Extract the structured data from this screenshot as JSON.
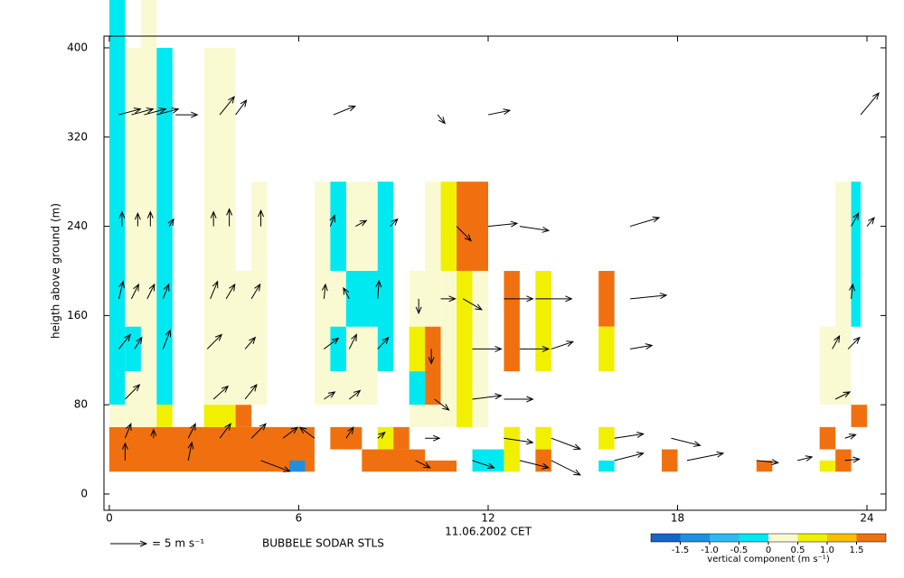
{
  "chart_data": {
    "type": "sodar",
    "ylabel": "heigth above ground (m)",
    "xlabel": "11.06.2002 CET",
    "caption": "BUBBELE SODAR STLS",
    "arrow_legend": "= 5 m s⁻¹",
    "arrow_legend_speed": 5,
    "colorbar_label": "vertical component (m s⁻¹)",
    "xlim": [
      -0.17,
      24.6
    ],
    "ylim": [
      -14.6,
      410.5
    ],
    "xticks": [
      0,
      6,
      12,
      18,
      24
    ],
    "yticks": [
      0,
      80,
      160,
      240,
      320,
      400
    ],
    "levels": [
      -2,
      -1.5,
      -1,
      -0.5,
      0,
      0.5,
      1,
      1.5,
      2
    ],
    "level_colors": [
      "#1565c8",
      "#1e90e0",
      "#30b8f0",
      "#00e8f0",
      "#fafad2",
      "#f0f000",
      "#f5c000",
      "#f07010"
    ],
    "colorbar_ticks": [
      -1.5,
      {
        "value": -1,
        "label": "-1.0"
      },
      -0.5,
      0,
      0.5,
      {
        "value": 1,
        "label": "1.0"
      },
      1.5
    ],
    "cells": [
      {
        "t0": 0,
        "t1": 6.5,
        "h0": 20,
        "h1": 60,
        "v": 1.8
      },
      {
        "t0": 5.7,
        "t1": 6.2,
        "h0": 20,
        "h1": 30,
        "v": -1.2
      },
      {
        "t0": 0,
        "t1": 0.5,
        "h0": 80,
        "h1": 443,
        "v": -0.3
      },
      {
        "t0": 0,
        "t1": 0.5,
        "h0": 60,
        "h1": 80,
        "v": 0.2
      },
      {
        "t0": 0.5,
        "t1": 1.5,
        "h0": 60,
        "h1": 400,
        "v": 0.2
      },
      {
        "t0": 1.0,
        "t1": 1.5,
        "h0": 400,
        "h1": 443,
        "v": 0.2
      },
      {
        "t0": 0.5,
        "t1": 1.0,
        "h0": 110,
        "h1": 150,
        "v": -0.3
      },
      {
        "t0": 1.5,
        "t1": 2.0,
        "h0": 80,
        "h1": 400,
        "v": -0.3
      },
      {
        "t0": 1.5,
        "t1": 2.0,
        "h0": 60,
        "h1": 80,
        "v": 0.8
      },
      {
        "t0": 3.0,
        "t1": 4.0,
        "h0": 80,
        "h1": 400,
        "v": 0.2
      },
      {
        "t0": 3.0,
        "t1": 4.0,
        "h0": 60,
        "h1": 80,
        "v": 0.8
      },
      {
        "t0": 4.0,
        "t1": 4.5,
        "h0": 60,
        "h1": 80,
        "v": 1.8
      },
      {
        "t0": 4.0,
        "t1": 5.0,
        "h0": 80,
        "h1": 200,
        "v": 0.2
      },
      {
        "t0": 4.5,
        "t1": 5.0,
        "h0": 200,
        "h1": 280,
        "v": 0.2
      },
      {
        "t0": 6.5,
        "t1": 8.5,
        "h0": 80,
        "h1": 280,
        "v": 0.2
      },
      {
        "t0": 7.0,
        "t1": 7.5,
        "h0": 200,
        "h1": 280,
        "v": -0.3
      },
      {
        "t0": 7.0,
        "t1": 7.5,
        "h0": 110,
        "h1": 150,
        "v": -0.3
      },
      {
        "t0": 7.5,
        "t1": 9.0,
        "h0": 150,
        "h1": 200,
        "v": -0.3
      },
      {
        "t0": 8.5,
        "t1": 9.0,
        "h0": 110,
        "h1": 280,
        "v": -0.3
      },
      {
        "t0": 9.5,
        "t1": 10.5,
        "h0": 60,
        "h1": 200,
        "v": 0.2
      },
      {
        "t0": 9.5,
        "t1": 10.0,
        "h0": 80,
        "h1": 110,
        "v": -0.3
      },
      {
        "t0": 9.5,
        "t1": 10.0,
        "h0": 110,
        "h1": 150,
        "v": 0.8
      },
      {
        "t0": 10.0,
        "t1": 10.5,
        "h0": 80,
        "h1": 150,
        "v": 1.8
      },
      {
        "t0": 10.0,
        "t1": 10.5,
        "h0": 200,
        "h1": 280,
        "v": 0.2
      },
      {
        "t0": 10.5,
        "t1": 11.0,
        "h0": 200,
        "h1": 280,
        "v": 0.8
      },
      {
        "t0": 11.0,
        "t1": 12.0,
        "h0": 200,
        "h1": 280,
        "v": 1.8
      },
      {
        "t0": 10.5,
        "t1": 12.0,
        "h0": 60,
        "h1": 200,
        "v": 0.2
      },
      {
        "t0": 11.0,
        "t1": 11.5,
        "h0": 60,
        "h1": 200,
        "v": 0.8
      },
      {
        "t0": 12.5,
        "t1": 13.0,
        "h0": 110,
        "h1": 200,
        "v": 1.8
      },
      {
        "t0": 13.5,
        "t1": 14.0,
        "h0": 110,
        "h1": 200,
        "v": 0.8
      },
      {
        "t0": 15.5,
        "t1": 16.0,
        "h0": 150,
        "h1": 200,
        "v": 1.8
      },
      {
        "t0": 15.5,
        "t1": 16.0,
        "h0": 110,
        "h1": 150,
        "v": 0.8
      },
      {
        "t0": 7.0,
        "t1": 8.0,
        "h0": 40,
        "h1": 60,
        "v": 1.8
      },
      {
        "t0": 8.5,
        "t1": 9.0,
        "h0": 40,
        "h1": 60,
        "v": 0.8
      },
      {
        "t0": 9.0,
        "t1": 9.5,
        "h0": 40,
        "h1": 60,
        "v": 1.8
      },
      {
        "t0": 8.0,
        "t1": 10.0,
        "h0": 20,
        "h1": 40,
        "v": 1.8
      },
      {
        "t0": 10.0,
        "t1": 11.0,
        "h0": 20,
        "h1": 30,
        "v": 1.8
      },
      {
        "t0": 11.5,
        "t1": 12.5,
        "h0": 20,
        "h1": 40,
        "v": -0.3
      },
      {
        "t0": 12.5,
        "t1": 13.0,
        "h0": 20,
        "h1": 60,
        "v": 0.8
      },
      {
        "t0": 13.5,
        "t1": 14.0,
        "h0": 20,
        "h1": 40,
        "v": 1.8
      },
      {
        "t0": 13.5,
        "t1": 14.0,
        "h0": 40,
        "h1": 60,
        "v": 0.8
      },
      {
        "t0": 15.5,
        "t1": 16.0,
        "h0": 40,
        "h1": 60,
        "v": 0.8
      },
      {
        "t0": 15.5,
        "t1": 16.0,
        "h0": 20,
        "h1": 30,
        "v": -0.3
      },
      {
        "t0": 17.5,
        "t1": 18.0,
        "h0": 20,
        "h1": 40,
        "v": 1.8
      },
      {
        "t0": 20.5,
        "t1": 21.0,
        "h0": 20,
        "h1": 30,
        "v": 1.8
      },
      {
        "t0": 22.5,
        "t1": 23.0,
        "h0": 40,
        "h1": 60,
        "v": 1.8
      },
      {
        "t0": 22.5,
        "t1": 23.0,
        "h0": 20,
        "h1": 30,
        "v": 0.8
      },
      {
        "t0": 23.0,
        "t1": 23.5,
        "h0": 20,
        "h1": 40,
        "v": 1.8
      },
      {
        "t0": 23.5,
        "t1": 24.0,
        "h0": 60,
        "h1": 80,
        "v": 1.8
      },
      {
        "t0": 22.5,
        "t1": 23.5,
        "h0": 80,
        "h1": 150,
        "v": 0.2
      },
      {
        "t0": 23.0,
        "t1": 23.5,
        "h0": 150,
        "h1": 280,
        "v": 0.2
      },
      {
        "t0": 23.5,
        "t1": 23.8,
        "h0": 150,
        "h1": 280,
        "v": -0.3
      }
    ],
    "arrows": [
      {
        "t": 0.3,
        "h": 340,
        "u": 3,
        "v": 0.8
      },
      {
        "t": 0.7,
        "h": 340,
        "u": 3,
        "v": 0.8
      },
      {
        "t": 1.1,
        "h": 340,
        "u": 3,
        "v": 0.8
      },
      {
        "t": 1.5,
        "h": 340,
        "u": 3,
        "v": 0.8
      },
      {
        "t": 2.1,
        "h": 340,
        "u": 3,
        "v": 0
      },
      {
        "t": 3.5,
        "h": 340,
        "u": 2,
        "v": 2.5
      },
      {
        "t": 4.0,
        "h": 340,
        "u": 1.5,
        "v": 2
      },
      {
        "t": 7.1,
        "h": 340,
        "u": 3,
        "v": 1.2
      },
      {
        "t": 10.4,
        "h": 340,
        "u": 1,
        "v": -1.2
      },
      {
        "t": 12.0,
        "h": 340,
        "u": 3,
        "v": 0.6
      },
      {
        "t": 23.8,
        "h": 340,
        "u": 2.5,
        "v": 3
      },
      {
        "t": 0.4,
        "h": 240,
        "u": 0,
        "v": 2
      },
      {
        "t": 0.9,
        "h": 240,
        "u": 0,
        "v": 1.8
      },
      {
        "t": 1.3,
        "h": 240,
        "u": 0,
        "v": 2
      },
      {
        "t": 1.9,
        "h": 240,
        "u": 0.6,
        "v": 1
      },
      {
        "t": 3.3,
        "h": 240,
        "u": 0,
        "v": 2
      },
      {
        "t": 3.8,
        "h": 240,
        "u": 0,
        "v": 2.4
      },
      {
        "t": 4.8,
        "h": 240,
        "u": 0,
        "v": 2.2
      },
      {
        "t": 7.0,
        "h": 240,
        "u": 0.6,
        "v": 1.5
      },
      {
        "t": 7.8,
        "h": 240,
        "u": 1.5,
        "v": 0.8
      },
      {
        "t": 8.9,
        "h": 240,
        "u": 1,
        "v": 1
      },
      {
        "t": 11.0,
        "h": 240,
        "u": 2,
        "v": -2
      },
      {
        "t": 12.0,
        "h": 240,
        "u": 4,
        "v": 0.4
      },
      {
        "t": 13.0,
        "h": 240,
        "u": 4,
        "v": -0.6
      },
      {
        "t": 16.5,
        "h": 240,
        "u": 4,
        "v": 1.2
      },
      {
        "t": 23.5,
        "h": 240,
        "u": 1,
        "v": 1.8
      },
      {
        "t": 24.0,
        "h": 240,
        "u": 1,
        "v": 1.2
      },
      {
        "t": 0.3,
        "h": 175,
        "u": 0.6,
        "v": 2.4
      },
      {
        "t": 0.7,
        "h": 175,
        "u": 1,
        "v": 2
      },
      {
        "t": 1.2,
        "h": 175,
        "u": 1,
        "v": 2
      },
      {
        "t": 1.7,
        "h": 175,
        "u": 0.8,
        "v": 2
      },
      {
        "t": 3.2,
        "h": 175,
        "u": 1,
        "v": 2.4
      },
      {
        "t": 3.7,
        "h": 175,
        "u": 1.2,
        "v": 2
      },
      {
        "t": 4.5,
        "h": 175,
        "u": 1.2,
        "v": 2
      },
      {
        "t": 6.8,
        "h": 175,
        "u": 0.2,
        "v": 2
      },
      {
        "t": 7.6,
        "h": 175,
        "u": -0.8,
        "v": 1.5
      },
      {
        "t": 8.5,
        "h": 175,
        "u": 0.2,
        "v": 2.5
      },
      {
        "t": 9.8,
        "h": 175,
        "u": 0,
        "v": -2
      },
      {
        "t": 10.5,
        "h": 175,
        "u": 2,
        "v": 0
      },
      {
        "t": 11.2,
        "h": 175,
        "u": 2.6,
        "v": -1.5
      },
      {
        "t": 12.5,
        "h": 175,
        "u": 4,
        "v": 0
      },
      {
        "t": 13.5,
        "h": 175,
        "u": 5,
        "v": 0
      },
      {
        "t": 16.5,
        "h": 175,
        "u": 5,
        "v": 0.5
      },
      {
        "t": 23.5,
        "h": 175,
        "u": 0.2,
        "v": 2
      },
      {
        "t": 0.3,
        "h": 130,
        "u": 1.6,
        "v": 2
      },
      {
        "t": 0.8,
        "h": 130,
        "u": 1,
        "v": 1.6
      },
      {
        "t": 1.7,
        "h": 130,
        "u": 1,
        "v": 2.6
      },
      {
        "t": 3.1,
        "h": 130,
        "u": 2,
        "v": 2
      },
      {
        "t": 4.3,
        "h": 130,
        "u": 1.4,
        "v": 1.6
      },
      {
        "t": 6.8,
        "h": 130,
        "u": 2,
        "v": 1.5
      },
      {
        "t": 7.6,
        "h": 130,
        "u": 1,
        "v": 2
      },
      {
        "t": 8.5,
        "h": 130,
        "u": 1.5,
        "v": 1.6
      },
      {
        "t": 10.2,
        "h": 130,
        "u": 0,
        "v": -2
      },
      {
        "t": 11.5,
        "h": 130,
        "u": 4,
        "v": 0
      },
      {
        "t": 13.0,
        "h": 130,
        "u": 4,
        "v": 0
      },
      {
        "t": 14.0,
        "h": 130,
        "u": 3,
        "v": 1
      },
      {
        "t": 16.5,
        "h": 130,
        "u": 3,
        "v": 0.5
      },
      {
        "t": 22.9,
        "h": 130,
        "u": 1,
        "v": 1.8
      },
      {
        "t": 23.4,
        "h": 130,
        "u": 1.6,
        "v": 1.6
      },
      {
        "t": 0.5,
        "h": 85,
        "u": 2,
        "v": 2
      },
      {
        "t": 3.3,
        "h": 85,
        "u": 2,
        "v": 1.8
      },
      {
        "t": 4.3,
        "h": 85,
        "u": 1.6,
        "v": 2
      },
      {
        "t": 6.8,
        "h": 85,
        "u": 1.5,
        "v": 1
      },
      {
        "t": 7.6,
        "h": 85,
        "u": 1.5,
        "v": 1.2
      },
      {
        "t": 10.3,
        "h": 85,
        "u": 2,
        "v": -1.5
      },
      {
        "t": 11.5,
        "h": 85,
        "u": 4,
        "v": 0.5
      },
      {
        "t": 12.5,
        "h": 85,
        "u": 4,
        "v": 0
      },
      {
        "t": 23.0,
        "h": 85,
        "u": 2,
        "v": 1
      },
      {
        "t": 0.5,
        "h": 50,
        "u": 0.8,
        "v": 2
      },
      {
        "t": 1.4,
        "h": 50,
        "u": 0,
        "v": 1.2
      },
      {
        "t": 2.5,
        "h": 50,
        "u": 1,
        "v": 2
      },
      {
        "t": 3.5,
        "h": 50,
        "u": 1.5,
        "v": 2
      },
      {
        "t": 4.5,
        "h": 50,
        "u": 2,
        "v": 2
      },
      {
        "t": 5.5,
        "h": 50,
        "u": 2,
        "v": 1.5
      },
      {
        "t": 6.5,
        "h": 50,
        "u": -2,
        "v": 1.5
      },
      {
        "t": 7.5,
        "h": 50,
        "u": 1,
        "v": 1.5
      },
      {
        "t": 8.5,
        "h": 50,
        "u": 1,
        "v": 0.8
      },
      {
        "t": 10.0,
        "h": 50,
        "u": 2,
        "v": 0
      },
      {
        "t": 12.5,
        "h": 50,
        "u": 4,
        "v": -0.6
      },
      {
        "t": 14.0,
        "h": 50,
        "u": 4,
        "v": -1.5
      },
      {
        "t": 16.0,
        "h": 50,
        "u": 4,
        "v": 0.6
      },
      {
        "t": 17.8,
        "h": 50,
        "u": 4,
        "v": -1
      },
      {
        "t": 23.3,
        "h": 50,
        "u": 1.5,
        "v": 0.5
      },
      {
        "t": 0.5,
        "h": 30,
        "u": 0,
        "v": 2.4
      },
      {
        "t": 2.5,
        "h": 30,
        "u": 0.5,
        "v": 2.5
      },
      {
        "t": 4.8,
        "h": 30,
        "u": 4,
        "v": -1.5
      },
      {
        "t": 9.7,
        "h": 30,
        "u": 2,
        "v": -1
      },
      {
        "t": 11.5,
        "h": 30,
        "u": 3,
        "v": -1
      },
      {
        "t": 13.0,
        "h": 30,
        "u": 4,
        "v": -1
      },
      {
        "t": 14.0,
        "h": 30,
        "u": 4,
        "v": -2
      },
      {
        "t": 16.0,
        "h": 30,
        "u": 4,
        "v": 1
      },
      {
        "t": 18.3,
        "h": 30,
        "u": 5,
        "v": 1
      },
      {
        "t": 20.5,
        "h": 30,
        "u": 3,
        "v": -0.3
      },
      {
        "t": 21.8,
        "h": 30,
        "u": 2,
        "v": 0.5
      },
      {
        "t": 23.3,
        "h": 30,
        "u": 2,
        "v": 0.2
      }
    ]
  }
}
